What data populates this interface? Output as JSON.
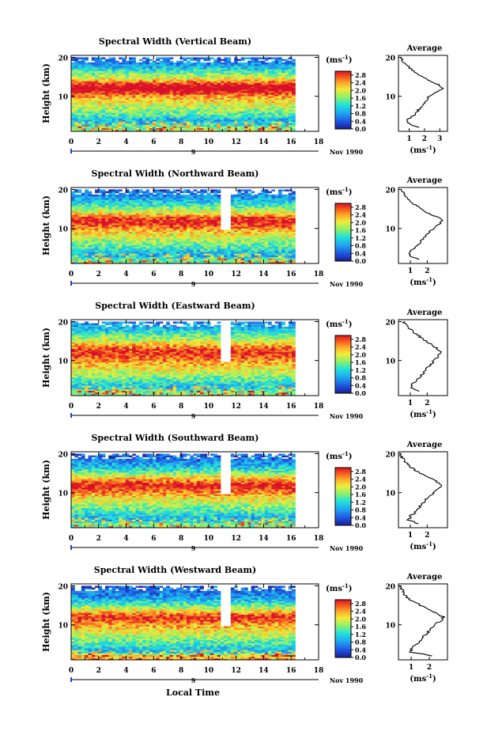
{
  "figure": {
    "xlabel": "Local Time",
    "date_label": "Nov 1990",
    "day_label": "9",
    "cbar_unit": "(ms",
    "cbar_unit_exp": "-1",
    "avg_title": "Average",
    "ylabel": "Height (km)"
  },
  "chart_data": [
    {
      "type": "heatmap",
      "title": "Spectral Width (Vertical Beam)",
      "xlabel": "Local Time",
      "ylabel": "Height (km)",
      "xlim": [
        0,
        18
      ],
      "ylim": [
        1,
        20.5
      ],
      "xticks": [
        0,
        2,
        4,
        6,
        8,
        10,
        12,
        14,
        16,
        18
      ],
      "xtick_labels": [
        "0",
        "2",
        "4",
        "6",
        "8",
        "10",
        "12",
        "14",
        "16",
        "18"
      ],
      "yticks": [
        10,
        20
      ],
      "data_end_hour": 16.3,
      "colorbar": {
        "unit": "ms-1",
        "ticks": [
          0.0,
          0.4,
          0.8,
          1.2,
          1.6,
          2.0,
          2.4,
          2.8
        ],
        "labels": [
          "0.0",
          "0.4",
          "0.8",
          "1.2",
          "1.6",
          "2.0",
          "2.4",
          "2.8"
        ]
      },
      "gaps": [],
      "profile_title": "Average",
      "profile_xlim": [
        0.3,
        3.5
      ],
      "profile_xticks": [
        1,
        2,
        3
      ],
      "profile_xtick_labels": [
        "1",
        "2",
        "3"
      ],
      "profile_xlabel": "(ms-1)",
      "profile": {
        "height_km": [
          2,
          3,
          4,
          5,
          6,
          7,
          8,
          9,
          10,
          11,
          12,
          13,
          14,
          15,
          16,
          17,
          18,
          19,
          20
        ],
        "width_ms": [
          1.6,
          1.0,
          0.9,
          1.3,
          1.5,
          1.7,
          1.9,
          2.1,
          2.3,
          2.8,
          3.2,
          2.9,
          2.3,
          1.8,
          1.5,
          1.1,
          0.8,
          0.6,
          0.5
        ]
      }
    },
    {
      "type": "heatmap",
      "title": "Spectral Width (Northward Beam)",
      "xlabel": "Local Time",
      "ylabel": "Height (km)",
      "xlim": [
        0,
        18
      ],
      "ylim": [
        1,
        20.5
      ],
      "xticks": [
        0,
        2,
        4,
        6,
        8,
        10,
        12,
        14,
        16,
        18
      ],
      "xtick_labels": [
        "0",
        "2",
        "4",
        "6",
        "8",
        "10",
        "12",
        "14",
        "16",
        "18"
      ],
      "yticks": [
        10,
        20
      ],
      "data_end_hour": 16.3,
      "colorbar": {
        "unit": "ms-1",
        "ticks": [
          0.0,
          0.4,
          0.8,
          1.2,
          1.6,
          2.0,
          2.4,
          2.8
        ],
        "labels": [
          "0.0",
          "0.4",
          "0.8",
          "1.2",
          "1.6",
          "2.0",
          "2.4",
          "2.8"
        ]
      },
      "gaps": [
        [
          10.7,
          11.6
        ]
      ],
      "profile_title": "Average",
      "profile_xlim": [
        0.3,
        3.2
      ],
      "profile_xticks": [
        1,
        2
      ],
      "profile_xtick_labels": [
        "1",
        "2"
      ],
      "profile_xlabel": "(ms-1)",
      "profile": {
        "height_km": [
          2,
          3,
          4,
          5,
          6,
          7,
          8,
          9,
          10,
          11,
          12,
          13,
          14,
          15,
          16,
          17,
          18,
          19,
          20
        ],
        "width_ms": [
          1.5,
          0.9,
          1.0,
          1.3,
          1.5,
          1.7,
          1.9,
          2.1,
          2.4,
          2.7,
          2.9,
          2.6,
          2.0,
          1.7,
          1.3,
          1.0,
          0.8,
          0.6,
          0.4
        ]
      }
    },
    {
      "type": "heatmap",
      "title": "Spectral Width (Eastward Beam)",
      "xlabel": "Local Time",
      "ylabel": "Height (km)",
      "xlim": [
        0,
        18
      ],
      "ylim": [
        1,
        20.5
      ],
      "xticks": [
        0,
        2,
        4,
        6,
        8,
        10,
        12,
        14,
        16,
        18
      ],
      "xtick_labels": [
        "0",
        "2",
        "4",
        "6",
        "8",
        "10",
        "12",
        "14",
        "16",
        "18"
      ],
      "yticks": [
        10,
        20
      ],
      "data_end_hour": 16.3,
      "colorbar": {
        "unit": "ms-1",
        "ticks": [
          0.0,
          0.4,
          0.8,
          1.2,
          1.6,
          2.0,
          2.4,
          2.8
        ],
        "labels": [
          "0.0",
          "0.4",
          "0.8",
          "1.2",
          "1.6",
          "2.0",
          "2.4",
          "2.8"
        ]
      },
      "gaps": [
        [
          10.7,
          11.6
        ]
      ],
      "profile_title": "Average",
      "profile_xlim": [
        0.3,
        3.2
      ],
      "profile_xticks": [
        1,
        2
      ],
      "profile_xtick_labels": [
        "1",
        "2"
      ],
      "profile_xlabel": "(ms-1)",
      "profile": {
        "height_km": [
          2,
          3,
          4,
          5,
          6,
          7,
          8,
          9,
          10,
          11,
          12,
          13,
          14,
          15,
          16,
          17,
          18,
          19,
          20
        ],
        "width_ms": [
          1.6,
          1.0,
          1.1,
          1.4,
          1.6,
          1.8,
          2.0,
          2.2,
          2.4,
          2.6,
          2.8,
          2.6,
          2.3,
          1.9,
          1.6,
          1.3,
          1.0,
          0.8,
          0.6
        ]
      }
    },
    {
      "type": "heatmap",
      "title": "Spectral Width (Southward Beam)",
      "xlabel": "Local Time",
      "ylabel": "Height (km)",
      "xlim": [
        0,
        18
      ],
      "ylim": [
        1,
        20.5
      ],
      "xticks": [
        0,
        2,
        4,
        6,
        8,
        10,
        12,
        14,
        16,
        18
      ],
      "xtick_labels": [
        "0",
        "2",
        "4",
        "6",
        "8",
        "10",
        "12",
        "14",
        "16",
        "18"
      ],
      "yticks": [
        10,
        20
      ],
      "data_end_hour": 16.3,
      "colorbar": {
        "unit": "ms-1",
        "ticks": [
          0.0,
          0.4,
          0.8,
          1.2,
          1.6,
          2.0,
          2.4,
          2.8
        ],
        "labels": [
          "0.0",
          "0.4",
          "0.8",
          "1.2",
          "1.6",
          "2.0",
          "2.4",
          "2.8"
        ]
      },
      "gaps": [
        [
          10.7,
          11.6
        ]
      ],
      "profile_title": "Average",
      "profile_xlim": [
        0.3,
        3.2
      ],
      "profile_xticks": [
        1,
        2
      ],
      "profile_xtick_labels": [
        "1",
        "2"
      ],
      "profile_xlabel": "(ms-1)",
      "profile": {
        "height_km": [
          2,
          3,
          4,
          5,
          6,
          7,
          8,
          9,
          10,
          11,
          12,
          13,
          14,
          15,
          16,
          17,
          18,
          19,
          20
        ],
        "width_ms": [
          1.5,
          0.9,
          1.0,
          1.3,
          1.5,
          1.7,
          1.9,
          2.1,
          2.4,
          2.7,
          2.9,
          2.5,
          2.1,
          1.6,
          1.2,
          0.9,
          0.7,
          0.5,
          0.4
        ]
      }
    },
    {
      "type": "heatmap",
      "title": "Spectral Width (Westward Beam)",
      "xlabel": "Local Time",
      "ylabel": "Height (km)",
      "xlim": [
        0,
        18
      ],
      "ylim": [
        1,
        20.5
      ],
      "xticks": [
        0,
        2,
        4,
        6,
        8,
        10,
        12,
        14,
        16,
        18
      ],
      "xtick_labels": [
        "0",
        "2",
        "4",
        "6",
        "8",
        "10",
        "12",
        "14",
        "16",
        "18"
      ],
      "yticks": [
        10,
        20
      ],
      "data_end_hour": 16.3,
      "colorbar": {
        "unit": "ms-1",
        "ticks": [
          0.0,
          0.4,
          0.8,
          1.2,
          1.6,
          2.0,
          2.4,
          2.8
        ],
        "labels": [
          "0.0",
          "0.4",
          "0.8",
          "1.2",
          "1.6",
          "2.0",
          "2.4",
          "2.8"
        ]
      },
      "gaps": [
        [
          10.7,
          11.6
        ]
      ],
      "profile_title": "Average",
      "profile_xlim": [
        0.3,
        3.0
      ],
      "profile_xticks": [
        1,
        2
      ],
      "profile_xtick_labels": [
        "1",
        "2"
      ],
      "profile_xlabel": "(ms-1)",
      "profile": {
        "height_km": [
          2,
          3,
          4,
          5,
          6,
          7,
          8,
          9,
          10,
          11,
          12,
          13,
          14,
          15,
          16,
          17,
          18,
          19,
          20
        ],
        "width_ms": [
          2.2,
          1.0,
          1.0,
          1.3,
          1.5,
          1.7,
          1.9,
          2.1,
          2.3,
          2.6,
          2.8,
          2.4,
          1.9,
          1.5,
          1.1,
          0.8,
          0.6,
          0.5,
          0.4
        ]
      }
    }
  ]
}
